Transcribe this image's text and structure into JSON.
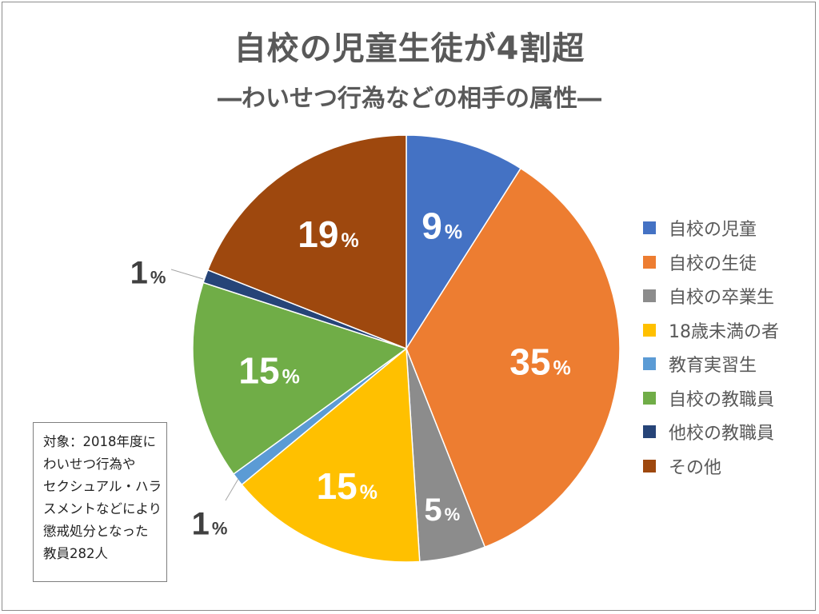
{
  "title": "自校の児童生徒が4割超",
  "subtitle": "―わいせつ行為などの相手の属性―",
  "percent_sign": "%",
  "note": {
    "lines": [
      "対象：2018年度に",
      "わいせつ行為や",
      "セクシュアル・ハラ",
      "スメントなどにより",
      "懲戒処分となった",
      "教員282人"
    ]
  },
  "chart_data": {
    "type": "pie",
    "start": "12 o'clock, clockwise",
    "legend": "right",
    "slices": [
      {
        "label": "自校の児童",
        "value": 9,
        "display": "9",
        "color": "#4472c4"
      },
      {
        "label": "自校の生徒",
        "value": 35,
        "display": "35",
        "color": "#ed7d31"
      },
      {
        "label": "自校の卒業生",
        "value": 5,
        "display": "5",
        "color": "#8c8c8c"
      },
      {
        "label": "18歳未満の者",
        "value": 15,
        "display": "15",
        "color": "#ffc000"
      },
      {
        "label": "教育実習生",
        "value": 1,
        "display": "1",
        "color": "#5b9bd5"
      },
      {
        "label": "自校の教職員",
        "value": 15,
        "display": "15",
        "color": "#70ad47"
      },
      {
        "label": "他校の教職員",
        "value": 1,
        "display": "1",
        "color": "#264478"
      },
      {
        "label": "その他",
        "value": 19,
        "display": "19",
        "color": "#9e480e"
      }
    ]
  }
}
